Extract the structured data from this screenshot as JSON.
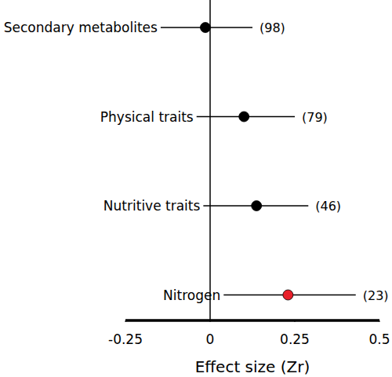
{
  "chart_data": {
    "type": "forest",
    "x_label": "Effect size (Zr)",
    "categories": [
      "Secondary metabolites",
      "Physical traits",
      "Nutritive traits",
      "Nitrogen"
    ],
    "values": [
      -0.014,
      0.1,
      0.137,
      0.23
    ],
    "ci_lower": [
      -0.146,
      -0.04,
      -0.02,
      0.04
    ],
    "ci_upper": [
      0.125,
      0.25,
      0.29,
      0.43
    ],
    "count_labels": [
      "(98)",
      "(79)",
      "(46)",
      "(23)"
    ],
    "colors": [
      "#000000",
      "#000000",
      "#000000",
      "#e8202a"
    ],
    "reference_line": 0,
    "xlim": [
      -0.25,
      0.5
    ],
    "xticks": [
      -0.25,
      0,
      0.25,
      0.5
    ],
    "grid": false
  }
}
